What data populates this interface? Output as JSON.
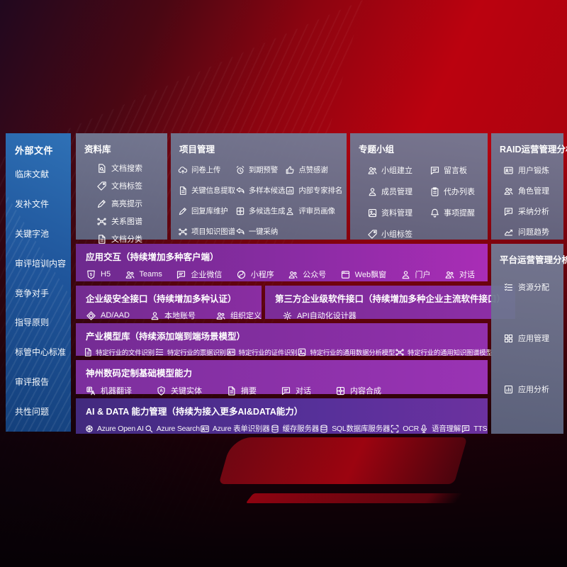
{
  "colors": {
    "sidebar_blue": "#1f559b",
    "panel_slate": "#6b7490",
    "band_purple": "#8a2da6",
    "band_indigo": "#4a2b85",
    "background_red": "#bb020f"
  },
  "sidebar": {
    "title": "外部文件",
    "items": [
      {
        "label": "临床文献"
      },
      {
        "label": "发补文件"
      },
      {
        "label": "关键字池"
      },
      {
        "label": "审评培训内容"
      },
      {
        "label": "竞争对手"
      },
      {
        "label": "指导原则"
      },
      {
        "label": "标管中心标准"
      },
      {
        "label": "审评报告"
      },
      {
        "label": "共性问题"
      }
    ]
  },
  "panels": {
    "repo": {
      "title": "资料库",
      "items": [
        {
          "label": "文档搜索",
          "icon": "document-search"
        },
        {
          "label": "文档标签",
          "icon": "document-tag"
        },
        {
          "label": "高亮提示",
          "icon": "highlight-pen"
        },
        {
          "label": "关系图谱",
          "icon": "relation-graph"
        },
        {
          "label": "文档分类",
          "icon": "document-category"
        }
      ]
    },
    "project": {
      "title": "项目管理",
      "items": [
        {
          "label": "问卷上传",
          "icon": "cloud-upload"
        },
        {
          "label": "到期预警",
          "icon": "alarm"
        },
        {
          "label": "点赞感谢",
          "icon": "thumbs-up"
        },
        {
          "label": "关键信息提取",
          "icon": "key-info-extract"
        },
        {
          "label": "多样本候选",
          "icon": "multi-sample"
        },
        {
          "label": "内部专家排名",
          "icon": "expert-ranking"
        },
        {
          "label": "回复库维护",
          "icon": "reply-maintain"
        },
        {
          "label": "多候选生成",
          "icon": "multi-generate"
        },
        {
          "label": "评审员画像",
          "icon": "reviewer-profile"
        },
        {
          "label": "项目知识图谱",
          "icon": "project-knowledge-graph"
        },
        {
          "label": "一键采纳",
          "icon": "one-click-adopt"
        }
      ]
    },
    "group": {
      "title": "专题小组",
      "items": [
        {
          "label": "小组建立",
          "icon": "team-create"
        },
        {
          "label": "留言板",
          "icon": "message-board"
        },
        {
          "label": "成员管理",
          "icon": "member-manage"
        },
        {
          "label": "代办列表",
          "icon": "todo-list"
        },
        {
          "label": "资料管理",
          "icon": "material-manage"
        },
        {
          "label": "事项提醒",
          "icon": "reminder-bell"
        },
        {
          "label": "小组标签",
          "icon": "group-tag"
        }
      ]
    },
    "raid": {
      "title": "RAID运营管理分析",
      "items": [
        {
          "label": "用户锻炼",
          "icon": "user-card"
        },
        {
          "label": "角色管理",
          "icon": "role-manage"
        },
        {
          "label": "采纳分析",
          "icon": "adoption-analysis"
        },
        {
          "label": "问题趋势",
          "icon": "issue-trend"
        }
      ]
    },
    "platform": {
      "title": "平台运营管理分析",
      "items": [
        {
          "label": "资源分配",
          "icon": "resource-allocation"
        },
        {
          "label": "应用管理",
          "icon": "app-manage"
        },
        {
          "label": "应用分析",
          "icon": "app-analysis"
        }
      ]
    }
  },
  "bands": {
    "interaction": {
      "title": "应用交互（持续增加多种客户端）",
      "items": [
        {
          "label": "H5",
          "icon": "h5-shield"
        },
        {
          "label": "Teams",
          "icon": "teams"
        },
        {
          "label": "企业微信",
          "icon": "wechat-work"
        },
        {
          "label": "小程序",
          "icon": "mini-program"
        },
        {
          "label": "公众号",
          "icon": "official-account"
        },
        {
          "label": "Web飘窗",
          "icon": "web-window"
        },
        {
          "label": "门户",
          "icon": "portal"
        },
        {
          "label": "对话",
          "icon": "dialog"
        }
      ]
    },
    "security": {
      "title": "企业级安全接口（持续增加多种认证）",
      "items": [
        {
          "label": "AD/AAD",
          "icon": "ad-aad"
        },
        {
          "label": "本地账号",
          "icon": "local-account"
        },
        {
          "label": "组织定义",
          "icon": "org-define"
        }
      ]
    },
    "thirdparty": {
      "title": "第三方企业级软件接口（持续增加多种企业主流软件接口）",
      "items": [
        {
          "label": "API自动化设计器",
          "icon": "api-designer"
        }
      ]
    },
    "industry": {
      "title": "产业模型库（持续添加端到端场景模型）",
      "items": [
        {
          "label": "特定行业的文件识别",
          "icon": "file-recognition"
        },
        {
          "label": "特定行业的票据识别",
          "icon": "receipt-recognition"
        },
        {
          "label": "特定行业的证件识别",
          "icon": "certificate-recognition"
        },
        {
          "label": "特定行业的通用数据分析模型",
          "icon": "data-analysis-model"
        },
        {
          "label": "特定行业的通用知识图谱模型",
          "icon": "knowledge-graph-model"
        }
      ]
    },
    "basemodel": {
      "title": "神州数码定制基础模型能力",
      "items": [
        {
          "label": "机器翻译",
          "icon": "machine-translate"
        },
        {
          "label": "关键实体",
          "icon": "key-entity"
        },
        {
          "label": "摘要",
          "icon": "summary-doc"
        },
        {
          "label": "对话",
          "icon": "dialog-chat"
        },
        {
          "label": "内容合成",
          "icon": "content-compose"
        }
      ]
    },
    "aidata": {
      "title": "AI & DATA 能力管理（持续为接入更多AI&DATA能力）",
      "items": [
        {
          "label": "Azure Open AI",
          "icon": "azure-openai"
        },
        {
          "label": "Azure Search",
          "icon": "azure-search"
        },
        {
          "label": "Azure 表单识别器",
          "icon": "form-recognizer"
        },
        {
          "label": "缓存服务器",
          "icon": "cache-server"
        },
        {
          "label": "SQL数据库服务器",
          "icon": "sql-server"
        },
        {
          "label": "OCR",
          "icon": "ocr-scan"
        },
        {
          "label": "语音理解",
          "icon": "speech-understanding"
        },
        {
          "label": "TTS",
          "icon": "tts"
        }
      ]
    }
  },
  "icon_shapes": {
    "document-search": "doc-search",
    "document-tag": "tag",
    "highlight-pen": "pen",
    "relation-graph": "net",
    "document-category": "doc",
    "cloud-upload": "cloud-up",
    "alarm": "alarm",
    "thumbs-up": "like",
    "key-info-extract": "doc",
    "multi-sample": "reply",
    "expert-ranking": "chart",
    "reply-maintain": "pen",
    "multi-generate": "puzzle",
    "reviewer-profile": "person",
    "project-knowledge-graph": "net",
    "one-click-adopt": "reply",
    "team-create": "people",
    "message-board": "chat",
    "member-manage": "person",
    "todo-list": "clip",
    "material-manage": "photo",
    "reminder-bell": "bell",
    "group-tag": "tag",
    "user-card": "card",
    "role-manage": "people",
    "adoption-analysis": "chat",
    "issue-trend": "trend",
    "resource-allocation": "list",
    "app-manage": "grid",
    "app-analysis": "chart",
    "h5-shield": "shield5",
    "teams": "people",
    "wechat-work": "chat",
    "mini-program": "loop",
    "official-account": "people",
    "web-window": "window",
    "portal": "person",
    "dialog": "people",
    "ad-aad": "diamond",
    "local-account": "person",
    "org-define": "people",
    "api-designer": "gear",
    "file-recognition": "doc",
    "receipt-recognition": "list",
    "certificate-recognition": "card",
    "data-analysis-model": "photo",
    "knowledge-graph-model": "net",
    "machine-translate": "translate",
    "key-entity": "lettera",
    "summary-doc": "doc",
    "dialog-chat": "chat",
    "content-compose": "puzzle",
    "azure-openai": "openai",
    "azure-search": "search",
    "form-recognizer": "card",
    "cache-server": "db",
    "sql-server": "db",
    "ocr-scan": "scan",
    "speech-understanding": "mic",
    "tts": "chat"
  }
}
